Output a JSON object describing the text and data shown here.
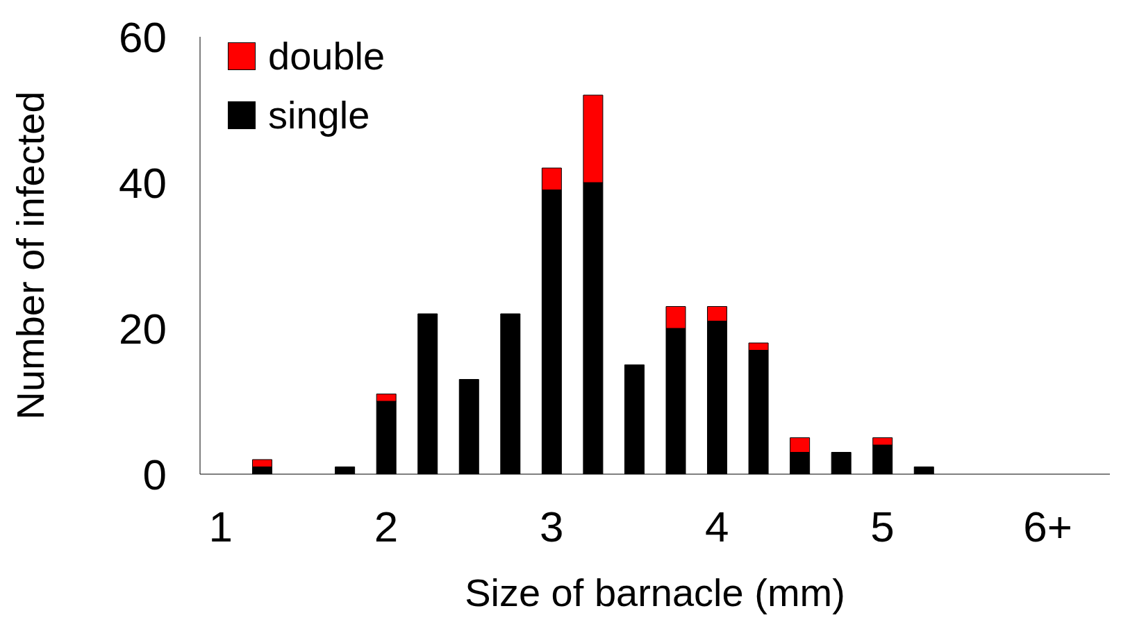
{
  "chart_data": {
    "type": "bar",
    "stacked": true,
    "xlabel": "Size of barnacle (mm)",
    "ylabel": "Number of infected",
    "categories": [
      "1",
      null,
      null,
      null,
      "2",
      null,
      null,
      null,
      "3",
      null,
      null,
      null,
      "4",
      null,
      null,
      null,
      "5",
      null,
      null,
      null,
      "6+",
      null
    ],
    "series": [
      {
        "name": "single",
        "color": "#000000",
        "values": [
          null,
          1,
          null,
          1,
          10,
          22,
          13,
          22,
          39,
          40,
          15,
          20,
          21,
          17,
          3,
          3,
          4,
          1,
          null,
          null,
          null,
          null
        ]
      },
      {
        "name": "double",
        "color": "#ff0000",
        "values": [
          null,
          1,
          null,
          null,
          1,
          null,
          null,
          null,
          3,
          12,
          null,
          3,
          2,
          1,
          2,
          null,
          1,
          null,
          null,
          null,
          null,
          null
        ]
      }
    ],
    "ylim": [
      0,
      60
    ],
    "yticks": [
      0,
      20,
      40,
      60
    ],
    "grid": false,
    "legend": "top left"
  }
}
